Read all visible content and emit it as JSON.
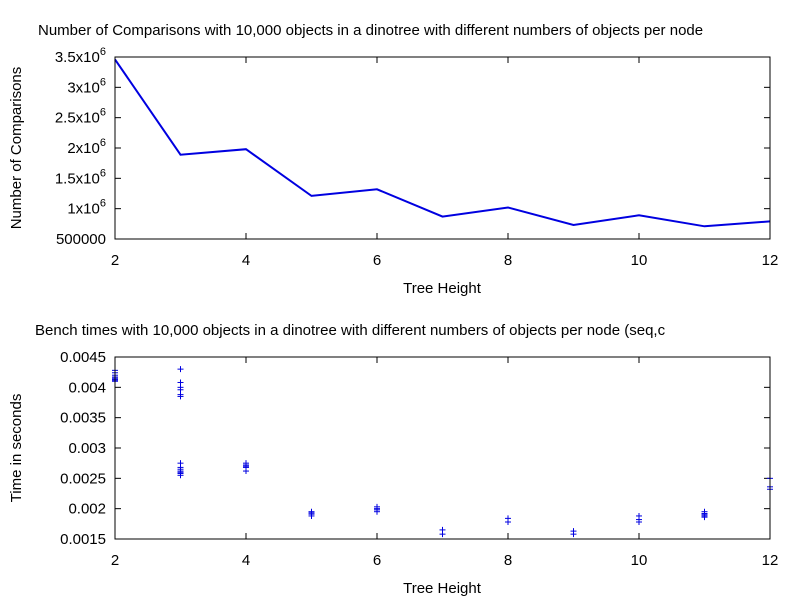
{
  "chart_data": [
    {
      "type": "line",
      "title": "Number of Comparisons with 10,000 objects in a dinotree with different numbers of objects per node",
      "xlabel": "Tree Height",
      "ylabel": "Number of Comparisons",
      "xlim": [
        2,
        12
      ],
      "ylim": [
        500000,
        3500000
      ],
      "x_ticks": [
        "2",
        "4",
        "6",
        "8",
        "10",
        "12"
      ],
      "y_ticks": [
        {
          "value": 500000,
          "mantissa": "500000",
          "exp": ""
        },
        {
          "value": 1000000,
          "mantissa": "1x10",
          "exp": "6"
        },
        {
          "value": 1500000,
          "mantissa": "1.5x10",
          "exp": "6"
        },
        {
          "value": 2000000,
          "mantissa": "2x10",
          "exp": "6"
        },
        {
          "value": 2500000,
          "mantissa": "2.5x10",
          "exp": "6"
        },
        {
          "value": 3000000,
          "mantissa": "3x10",
          "exp": "6"
        },
        {
          "value": 3500000,
          "mantissa": "3.5x10",
          "exp": "6"
        }
      ],
      "color": "#0000e0",
      "x": [
        2,
        3,
        4,
        5,
        6,
        7,
        8,
        9,
        10,
        11,
        12
      ],
      "y": [
        3460000,
        1890000,
        1980000,
        1210000,
        1320000,
        870000,
        1020000,
        730000,
        890000,
        710000,
        790000
      ]
    },
    {
      "type": "scatter",
      "title": "Bench times with 10,000 objects in a dinotree with different numbers of objects per node (seq,c",
      "xlabel": "Tree Height",
      "ylabel": "Time in seconds",
      "xlim": [
        2,
        12
      ],
      "ylim": [
        0.0015,
        0.0045
      ],
      "x_ticks": [
        "2",
        "4",
        "6",
        "8",
        "10",
        "12"
      ],
      "y_ticks": [
        "0.0015",
        "0.002",
        "0.0025",
        "0.003",
        "0.0035",
        "0.004",
        "0.0045"
      ],
      "color": "#0000e0",
      "marker": "plus",
      "points": [
        [
          2,
          0.00428
        ],
        [
          2,
          0.00424
        ],
        [
          2,
          0.0042
        ],
        [
          2,
          0.00417
        ],
        [
          2,
          0.00415
        ],
        [
          2,
          0.00413
        ],
        [
          2,
          0.00411
        ],
        [
          2,
          0.0041
        ],
        [
          3,
          0.0043
        ],
        [
          3,
          0.00408
        ],
        [
          3,
          0.004
        ],
        [
          3,
          0.00396
        ],
        [
          3,
          0.00388
        ],
        [
          3,
          0.00385
        ],
        [
          3,
          0.00275
        ],
        [
          3,
          0.00268
        ],
        [
          3,
          0.00265
        ],
        [
          3,
          0.00262
        ],
        [
          3,
          0.0026
        ],
        [
          3,
          0.00258
        ],
        [
          3,
          0.00255
        ],
        [
          4,
          0.00275
        ],
        [
          4,
          0.00272
        ],
        [
          4,
          0.0027
        ],
        [
          4,
          0.00268
        ],
        [
          4,
          0.00262
        ],
        [
          5,
          0.00195
        ],
        [
          5,
          0.00193
        ],
        [
          5,
          0.00191
        ],
        [
          5,
          0.00188
        ],
        [
          6,
          0.00203
        ],
        [
          6,
          0.002
        ],
        [
          6,
          0.00198
        ],
        [
          6,
          0.00195
        ],
        [
          7,
          0.00165
        ],
        [
          7,
          0.00158
        ],
        [
          8,
          0.00184
        ],
        [
          8,
          0.00178
        ],
        [
          9,
          0.00163
        ],
        [
          9,
          0.00158
        ],
        [
          10,
          0.00188
        ],
        [
          10,
          0.00182
        ],
        [
          10,
          0.00178
        ],
        [
          11,
          0.00195
        ],
        [
          11,
          0.00192
        ],
        [
          11,
          0.0019
        ],
        [
          11,
          0.00188
        ],
        [
          11,
          0.00186
        ],
        [
          12,
          0.0025
        ],
        [
          12,
          0.00236
        ],
        [
          12,
          0.00232
        ]
      ]
    }
  ]
}
